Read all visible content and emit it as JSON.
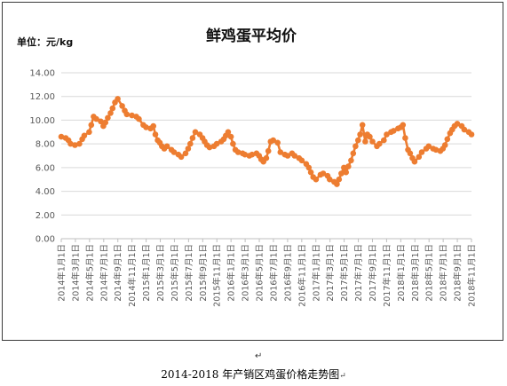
{
  "chart_data": {
    "type": "line",
    "title": "鲜鸡蛋平均价",
    "unit_label": "单位：元/kg",
    "ylim": [
      0,
      14
    ],
    "yticks": [
      "0.00",
      "2.00",
      "4.00",
      "6.00",
      "8.00",
      "10.00",
      "12.00",
      "14.00"
    ],
    "x_range": [
      "2014-01-01",
      "2018-11-01"
    ],
    "xtick_labels": [
      "2014年1月1日",
      "2014年3月1日",
      "2014年5月1日",
      "2014年7月1日",
      "2014年9月1日",
      "2014年11月1日",
      "2015年1月1日",
      "2015年3月1日",
      "2015年5月1日",
      "2015年7月1日",
      "2015年9月1日",
      "2015年11月1日",
      "2016年1月1日",
      "2016年3月1日",
      "2016年5月1日",
      "2016年7月1日",
      "2016年9月1日",
      "2016年11月1日",
      "2017年1月1日",
      "2017年3月1日",
      "2017年5月1日",
      "2017年7月1日",
      "2017年9月1日",
      "2017年11月1日",
      "2018年1月1日",
      "2018年3月1日",
      "2018年5月1日",
      "2018年7月1日",
      "2018年9月1日",
      "2018年11月1日"
    ],
    "grid": true,
    "legend": "none",
    "series": [
      {
        "color": "#ED7D31",
        "points": [
          [
            "2014-01-01",
            8.6
          ],
          [
            "2014-01-20",
            8.5
          ],
          [
            "2014-02-01",
            8.3
          ],
          [
            "2014-02-10",
            8.0
          ],
          [
            "2014-03-01",
            7.9
          ],
          [
            "2014-03-20",
            8.0
          ],
          [
            "2014-04-01",
            8.4
          ],
          [
            "2014-04-10",
            8.7
          ],
          [
            "2014-05-01",
            9.0
          ],
          [
            "2014-05-10",
            9.6
          ],
          [
            "2014-05-20",
            10.3
          ],
          [
            "2014-06-01",
            10.1
          ],
          [
            "2014-06-20",
            9.9
          ],
          [
            "2014-07-01",
            9.5
          ],
          [
            "2014-07-10",
            9.8
          ],
          [
            "2014-07-20",
            10.2
          ],
          [
            "2014-08-01",
            10.6
          ],
          [
            "2014-08-10",
            11.0
          ],
          [
            "2014-08-20",
            11.5
          ],
          [
            "2014-09-01",
            11.8
          ],
          [
            "2014-09-20",
            11.2
          ],
          [
            "2014-10-01",
            10.8
          ],
          [
            "2014-10-10",
            10.5
          ],
          [
            "2014-11-01",
            10.4
          ],
          [
            "2014-11-20",
            10.3
          ],
          [
            "2014-12-01",
            10.1
          ],
          [
            "2014-12-20",
            9.6
          ],
          [
            "2015-01-01",
            9.4
          ],
          [
            "2015-01-20",
            9.3
          ],
          [
            "2015-02-01",
            9.5
          ],
          [
            "2015-02-10",
            8.8
          ],
          [
            "2015-02-20",
            8.3
          ],
          [
            "2015-03-01",
            8.1
          ],
          [
            "2015-03-10",
            7.8
          ],
          [
            "2015-03-20",
            7.6
          ],
          [
            "2015-04-01",
            7.8
          ],
          [
            "2015-04-20",
            7.5
          ],
          [
            "2015-05-01",
            7.3
          ],
          [
            "2015-05-20",
            7.1
          ],
          [
            "2015-06-01",
            6.9
          ],
          [
            "2015-06-20",
            7.2
          ],
          [
            "2015-07-01",
            7.6
          ],
          [
            "2015-07-10",
            8.0
          ],
          [
            "2015-07-20",
            8.5
          ],
          [
            "2015-08-01",
            9.0
          ],
          [
            "2015-08-20",
            8.8
          ],
          [
            "2015-09-01",
            8.5
          ],
          [
            "2015-09-10",
            8.2
          ],
          [
            "2015-09-20",
            7.9
          ],
          [
            "2015-10-01",
            7.7
          ],
          [
            "2015-10-20",
            7.8
          ],
          [
            "2015-11-01",
            8.0
          ],
          [
            "2015-11-20",
            8.2
          ],
          [
            "2015-12-01",
            8.4
          ],
          [
            "2015-12-10",
            8.7
          ],
          [
            "2015-12-20",
            9.0
          ],
          [
            "2016-01-01",
            8.6
          ],
          [
            "2016-01-10",
            8.0
          ],
          [
            "2016-01-20",
            7.5
          ],
          [
            "2016-02-01",
            7.3
          ],
          [
            "2016-02-20",
            7.2
          ],
          [
            "2016-03-01",
            7.1
          ],
          [
            "2016-03-20",
            7.0
          ],
          [
            "2016-04-01",
            7.1
          ],
          [
            "2016-04-20",
            7.2
          ],
          [
            "2016-05-01",
            7.0
          ],
          [
            "2016-05-10",
            6.7
          ],
          [
            "2016-05-20",
            6.5
          ],
          [
            "2016-06-01",
            6.8
          ],
          [
            "2016-06-10",
            7.4
          ],
          [
            "2016-06-20",
            8.2
          ],
          [
            "2016-07-01",
            8.3
          ],
          [
            "2016-07-20",
            8.1
          ],
          [
            "2016-08-01",
            7.3
          ],
          [
            "2016-08-20",
            7.1
          ],
          [
            "2016-09-01",
            7.0
          ],
          [
            "2016-09-20",
            7.2
          ],
          [
            "2016-10-01",
            7.0
          ],
          [
            "2016-10-20",
            6.8
          ],
          [
            "2016-11-01",
            6.6
          ],
          [
            "2016-11-20",
            6.3
          ],
          [
            "2016-12-01",
            6.0
          ],
          [
            "2016-12-10",
            5.6
          ],
          [
            "2016-12-20",
            5.2
          ],
          [
            "2017-01-01",
            5.0
          ],
          [
            "2017-01-20",
            5.4
          ],
          [
            "2017-02-01",
            5.5
          ],
          [
            "2017-02-20",
            5.3
          ],
          [
            "2017-03-01",
            5.0
          ],
          [
            "2017-03-20",
            4.8
          ],
          [
            "2017-04-01",
            4.6
          ],
          [
            "2017-04-10",
            5.0
          ],
          [
            "2017-04-20",
            5.5
          ],
          [
            "2017-05-01",
            6.0
          ],
          [
            "2017-05-10",
            5.6
          ],
          [
            "2017-05-20",
            6.1
          ],
          [
            "2017-06-01",
            6.6
          ],
          [
            "2017-06-10",
            7.2
          ],
          [
            "2017-06-20",
            7.8
          ],
          [
            "2017-07-01",
            8.3
          ],
          [
            "2017-07-10",
            8.8
          ],
          [
            "2017-07-20",
            9.6
          ],
          [
            "2017-08-01",
            8.2
          ],
          [
            "2017-08-10",
            8.8
          ],
          [
            "2017-08-20",
            8.6
          ],
          [
            "2017-09-01",
            8.2
          ],
          [
            "2017-09-20",
            7.8
          ],
          [
            "2017-10-01",
            8.0
          ],
          [
            "2017-10-20",
            8.3
          ],
          [
            "2017-11-01",
            8.8
          ],
          [
            "2017-11-20",
            9.0
          ],
          [
            "2017-12-01",
            9.1
          ],
          [
            "2017-12-20",
            9.3
          ],
          [
            "2018-01-01",
            9.4
          ],
          [
            "2018-01-10",
            9.6
          ],
          [
            "2018-01-20",
            8.5
          ],
          [
            "2018-02-01",
            7.5
          ],
          [
            "2018-02-10",
            7.2
          ],
          [
            "2018-02-20",
            6.8
          ],
          [
            "2018-03-01",
            6.5
          ],
          [
            "2018-03-20",
            6.9
          ],
          [
            "2018-04-01",
            7.3
          ],
          [
            "2018-04-20",
            7.6
          ],
          [
            "2018-05-01",
            7.8
          ],
          [
            "2018-05-20",
            7.6
          ],
          [
            "2018-06-01",
            7.5
          ],
          [
            "2018-06-20",
            7.4
          ],
          [
            "2018-07-01",
            7.6
          ],
          [
            "2018-07-10",
            7.9
          ],
          [
            "2018-07-20",
            8.4
          ],
          [
            "2018-08-01",
            8.9
          ],
          [
            "2018-08-10",
            9.2
          ],
          [
            "2018-08-20",
            9.5
          ],
          [
            "2018-09-01",
            9.7
          ],
          [
            "2018-09-20",
            9.5
          ],
          [
            "2018-10-01",
            9.2
          ],
          [
            "2018-10-20",
            9.0
          ],
          [
            "2018-11-01",
            8.8
          ]
        ]
      }
    ]
  },
  "caption": {
    "return_mark": "↵",
    "text": "2014-2018 年产销区鸡蛋价格走势图",
    "end_mark": "↵"
  }
}
